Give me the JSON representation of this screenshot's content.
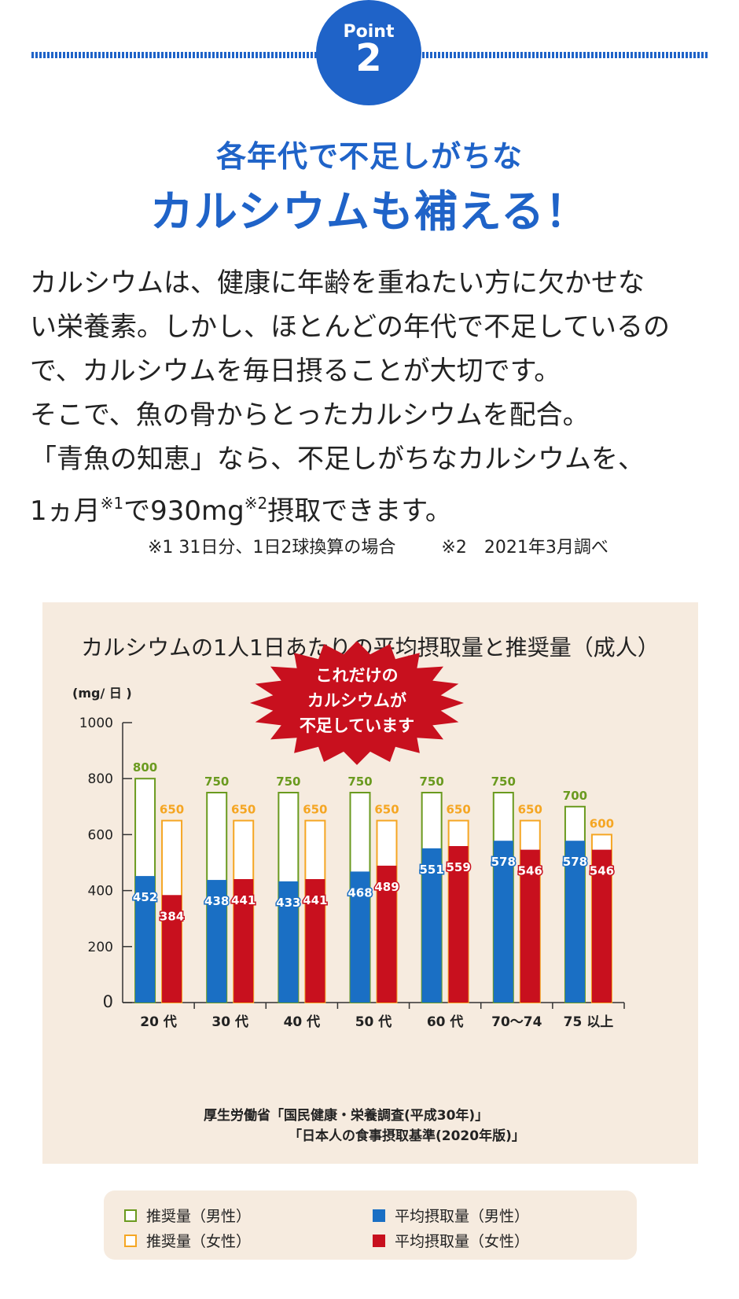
{
  "header": {
    "point_label": "Point",
    "point_number": "2",
    "headline_line1": "各年代で不足しがちな",
    "headline_line2": "カルシウムも補える！"
  },
  "body": {
    "line1": "カルシウムは、健康に年齢を重ねたい方に欠かせな",
    "line2": "い栄養素。しかし、ほとんどの年代で不足しているの",
    "line3": "で、カルシウムを毎日摂ることが大切です。",
    "line4": "そこで、魚の骨からとったカルシウムを配合。",
    "line5": "「青魚の知恵」なら、不足しがちなカルシウムを、",
    "line6_part1": "1ヵ月",
    "line6_note1": "※1",
    "line6_part2": "で930mg",
    "line6_note2": "※2",
    "line6_part3": "摂取できます。"
  },
  "footnotes": {
    "note1": "※1 31日分、1日2球換算の場合",
    "note2": "※2　2021年3月調べ"
  },
  "colors": {
    "brand_blue": "#1f63c8",
    "male_recommended": "#6a9a1f",
    "female_recommended": "#f5a623",
    "male_average": "#1a6fc4",
    "female_average": "#c8101e",
    "panel_bg": "#f6ebdf",
    "burst": "#c8101e"
  },
  "chart_data": {
    "type": "bar",
    "title": "カルシウムの1人1日あたりの平均摂取量と推奨量（成人）",
    "ylabel": "(mg/ 日 )",
    "ylim": [
      0,
      1000
    ],
    "yticks": [
      0,
      200,
      400,
      600,
      800,
      1000
    ],
    "categories": [
      "20 代",
      "30 代",
      "40 代",
      "50 代",
      "60 代",
      "70～74",
      "75 以上"
    ],
    "series": [
      {
        "name": "推奨量（男性）",
        "values": [
          800,
          750,
          750,
          750,
          750,
          750,
          700
        ]
      },
      {
        "name": "推奨量（女性）",
        "values": [
          650,
          650,
          650,
          650,
          650,
          650,
          600
        ]
      },
      {
        "name": "平均摂取量（男性）",
        "values": [
          452,
          438,
          433,
          468,
          551,
          578,
          578
        ]
      },
      {
        "name": "平均摂取量（女性）",
        "values": [
          384,
          441,
          441,
          489,
          559,
          546,
          546
        ]
      }
    ],
    "annotation": [
      "これだけの",
      "カルシウムが",
      "不足しています"
    ],
    "grid": false,
    "legend": "bottom"
  },
  "source": {
    "line1": "厚生労働省「国民健康・栄養調査(平成30年)」",
    "line2": "「日本人の食事摂取基準(2020年版)」"
  },
  "legend": {
    "male_recommended": "推奨量（男性）",
    "female_recommended": "推奨量（女性）",
    "male_average": "平均摂取量（男性）",
    "female_average": "平均摂取量（女性）"
  }
}
